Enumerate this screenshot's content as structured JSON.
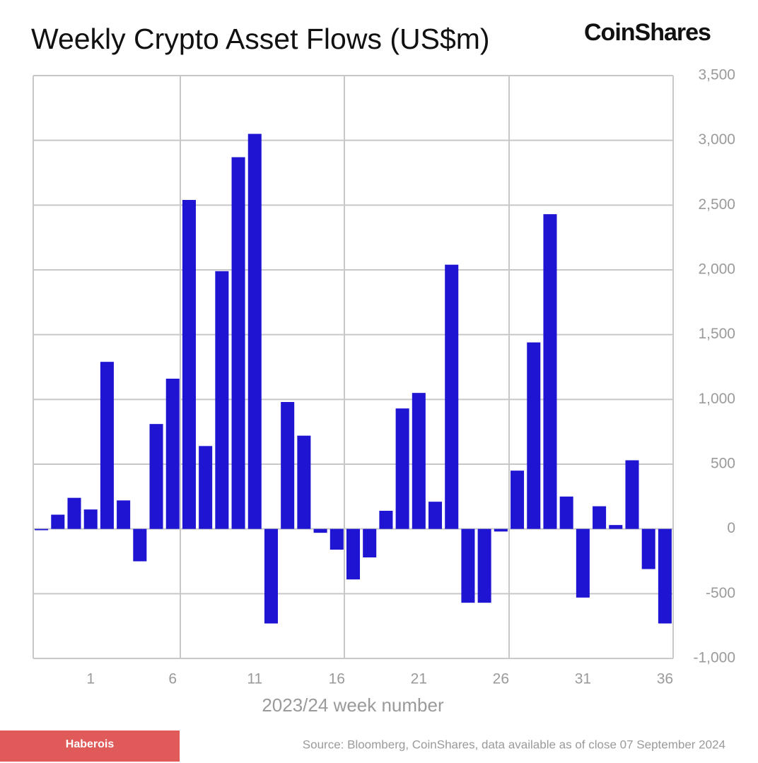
{
  "chart_data": {
    "type": "bar",
    "title": "Weekly Crypto Asset Flows (US$m)",
    "brand": "CoinShares",
    "x_label": "2023/24 week number",
    "source": "Source: Bloomberg, CoinShares, data available as of close 07 September 2024",
    "watermark": "Haberois",
    "categories": [
      null,
      null,
      null,
      "1",
      null,
      null,
      null,
      null,
      "6",
      null,
      null,
      null,
      null,
      "11",
      null,
      null,
      null,
      null,
      "16",
      null,
      null,
      null,
      null,
      "21",
      null,
      null,
      null,
      null,
      "26",
      null,
      null,
      null,
      null,
      "31",
      null,
      null,
      null,
      null,
      "36"
    ],
    "values": [
      -10,
      110,
      240,
      150,
      1290,
      220,
      -250,
      810,
      1160,
      2540,
      640,
      1990,
      2870,
      3050,
      -730,
      980,
      720,
      -30,
      -160,
      -390,
      -220,
      140,
      930,
      1050,
      210,
      2040,
      -570,
      -570,
      -20,
      450,
      1440,
      2430,
      250,
      -530,
      175,
      30,
      530,
      -310,
      -730
    ],
    "color": "#1e14d2",
    "ylim": [
      -1000,
      3500
    ],
    "yticks": [
      {
        "value": -1000,
        "label": "-1,000"
      },
      -500,
      0,
      500,
      {
        "value": 1000,
        "label": "1,000"
      },
      {
        "value": 1500,
        "label": "1,500"
      },
      {
        "value": 2000,
        "label": "2,000"
      },
      {
        "value": 2500,
        "label": "2,500"
      },
      {
        "value": 3000,
        "label": "3,000"
      },
      {
        "value": 3500,
        "label": "3,500"
      }
    ],
    "grid": true
  }
}
